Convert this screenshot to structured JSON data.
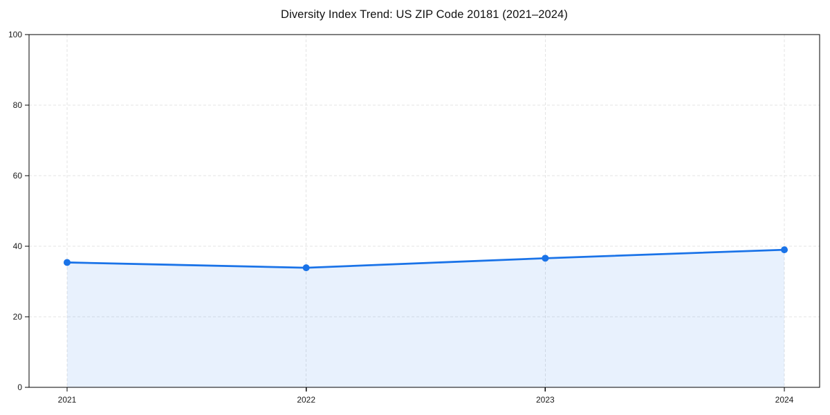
{
  "chart_data": {
    "type": "area",
    "title": "Diversity Index Trend: US ZIP Code 20181 (2021–2024)",
    "categories": [
      "2021",
      "2022",
      "2023",
      "2024"
    ],
    "values": [
      35.4,
      33.9,
      36.6,
      39.0
    ],
    "xlabel": "",
    "ylabel": "",
    "ylim": [
      0,
      100
    ],
    "yticks": [
      0,
      20,
      40,
      60,
      80,
      100
    ],
    "grid": true,
    "grid_style": "dashed",
    "legend_position": "none",
    "colors": {
      "line": "#1a73e8",
      "marker": "#1a73e8",
      "fill": "rgba(26,115,232,0.10)",
      "grid": "#e3e3e3",
      "axis": "#000000",
      "tick_text": "#1a1a1a",
      "background": "#ffffff"
    }
  }
}
